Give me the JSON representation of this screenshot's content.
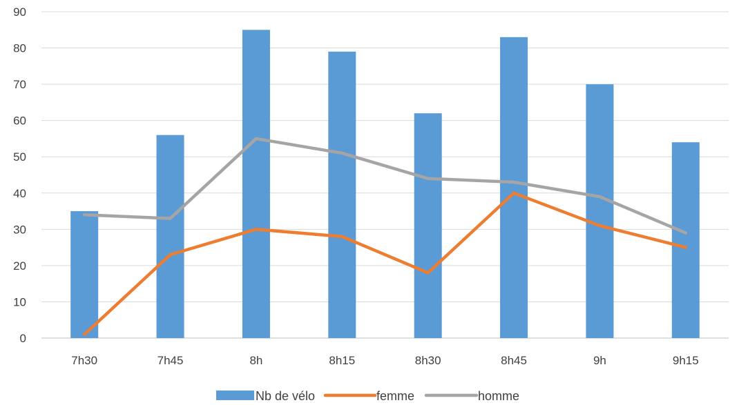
{
  "chart_data": {
    "type": "bar",
    "title": "",
    "xlabel": "",
    "ylabel": "",
    "categories": [
      "7h30",
      "7h45",
      "8h",
      "8h15",
      "8h30",
      "8h45",
      "9h",
      "9h15"
    ],
    "ylim": [
      0,
      90
    ],
    "yticks": [
      0,
      10,
      20,
      30,
      40,
      50,
      60,
      70,
      80,
      90
    ],
    "grid": true,
    "legend_position": "bottom",
    "series": [
      {
        "name": "Nb de vélo",
        "type": "bar",
        "color": "#5B9BD5",
        "values": [
          35,
          56,
          85,
          79,
          62,
          83,
          70,
          54
        ]
      },
      {
        "name": "femme",
        "type": "line",
        "color": "#ED7D31",
        "values": [
          1,
          23,
          30,
          28,
          18,
          40,
          31,
          25
        ]
      },
      {
        "name": "homme",
        "type": "line",
        "color": "#A5A5A5",
        "values": [
          34,
          33,
          55,
          51,
          44,
          43,
          39,
          29
        ]
      }
    ]
  }
}
